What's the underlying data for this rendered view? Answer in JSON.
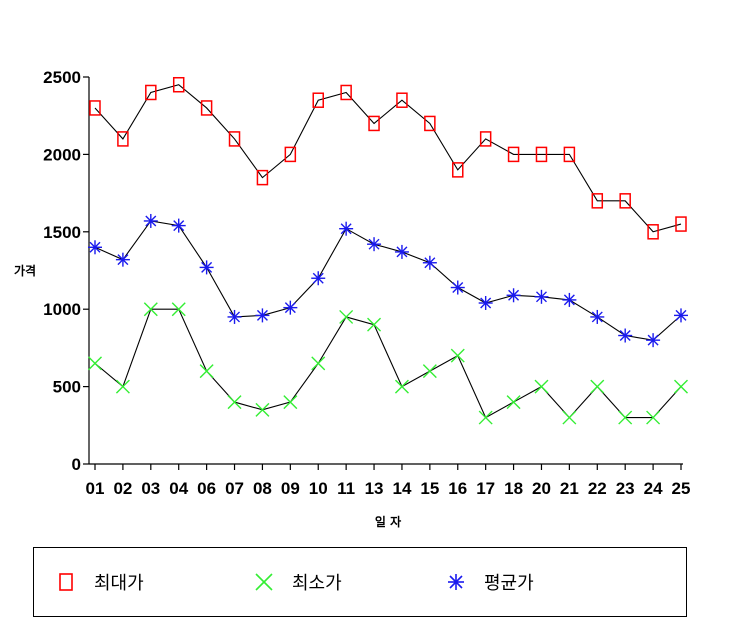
{
  "chart_data": {
    "type": "line",
    "title": "",
    "xlabel": "일 자",
    "ylabel": "가격",
    "categories": [
      "01",
      "02",
      "03",
      "04",
      "06",
      "07",
      "08",
      "09",
      "10",
      "11",
      "13",
      "14",
      "15",
      "16",
      "17",
      "18",
      "20",
      "21",
      "22",
      "23",
      "24",
      "25"
    ],
    "ylim": [
      0,
      2500
    ],
    "yticks": [
      0,
      500,
      1000,
      1500,
      2000,
      2500
    ],
    "grid": false,
    "legend_position": "bottom",
    "series": [
      {
        "name": "최대가",
        "marker": "square",
        "color": "#ff0000",
        "values": [
          2300,
          2100,
          2400,
          2450,
          2300,
          2100,
          1850,
          2000,
          2350,
          2400,
          2200,
          2350,
          2200,
          1900,
          2100,
          2000,
          2000,
          2000,
          1700,
          1700,
          1500,
          1550
        ]
      },
      {
        "name": "최소가",
        "marker": "x",
        "color": "#33ee33",
        "values": [
          650,
          500,
          1000,
          1000,
          600,
          400,
          350,
          400,
          650,
          950,
          900,
          500,
          600,
          700,
          300,
          400,
          500,
          300,
          500,
          300,
          300,
          500
        ]
      },
      {
        "name": "평균가",
        "marker": "asterisk",
        "color": "#1a1aee",
        "values": [
          1400,
          1320,
          1570,
          1540,
          1270,
          950,
          960,
          1010,
          1200,
          1520,
          1420,
          1370,
          1300,
          1140,
          1040,
          1090,
          1080,
          1060,
          950,
          830,
          800,
          960
        ]
      }
    ]
  },
  "legend": [
    {
      "label": "최대가",
      "marker": "square",
      "color": "#ff0000"
    },
    {
      "label": "최소가",
      "marker": "x",
      "color": "#33ee33"
    },
    {
      "label": "평균가",
      "marker": "asterisk",
      "color": "#1a1aee"
    }
  ]
}
